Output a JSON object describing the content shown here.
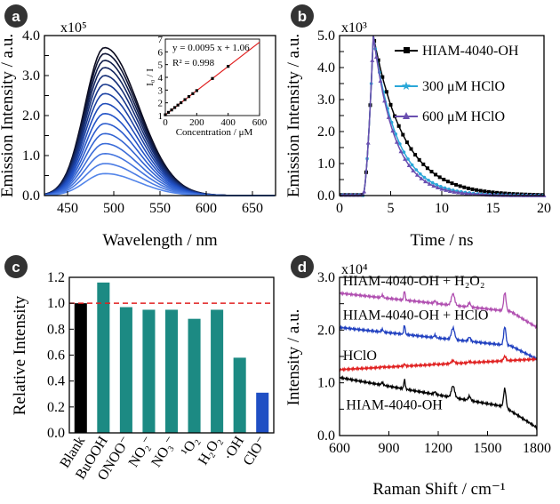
{
  "figure": {
    "panels": {
      "a": {
        "badge": "a",
        "multiplier": "x10⁵",
        "xlabel": "Wavelength / nm",
        "ylabel": "Emission Intensity / a.u."
      },
      "b": {
        "badge": "b",
        "multiplier": "x10³",
        "xlabel": "Time / ns",
        "ylabel": "Emission Intensity / a.u."
      },
      "c": {
        "badge": "c",
        "ylabel": "Relative Intensity"
      },
      "d": {
        "badge": "d",
        "multiplier": "x10⁴",
        "xlabel": "Raman Shift / cm⁻¹",
        "ylabel": "Intensity / a.u."
      }
    },
    "colors": {
      "dark_navy": "#0b0b1e",
      "mid_blue": "#1f4fc4",
      "light_blue": "#5b8def",
      "cyan": "#2aa7d8",
      "purple": "#6a4fb0",
      "teal": "#1c8a83",
      "red": "#e02020",
      "magenta": "#b04fb0",
      "blue_line": "#2040c0",
      "black": "#000000"
    }
  },
  "chart_data": [
    {
      "panel": "a",
      "type": "line",
      "xlabel": "Wavelength / nm",
      "ylabel": "Emission Intensity / a.u.",
      "y_multiplier": "x10⁵",
      "xlim": [
        425,
        675
      ],
      "ylim": [
        0,
        4.0
      ],
      "xticks": [
        450,
        500,
        550,
        600,
        650
      ],
      "yticks": [
        0.0,
        0.5,
        1.0,
        1.5,
        2.0,
        2.5,
        3.0,
        3.5,
        4.0
      ],
      "ytick_labels": [
        "0.0",
        "",
        "1.0",
        "",
        "2.0",
        "",
        "3.0",
        "",
        "4.0"
      ],
      "peak_wavelength": 490,
      "series_peaks": [
        3.7,
        3.55,
        3.38,
        3.2,
        3.0,
        2.78,
        2.55,
        2.3,
        2.05,
        1.8,
        1.55,
        1.3,
        1.05,
        0.8,
        0.55
      ],
      "gradient": "black to blue with increasing concentration",
      "inset": {
        "type": "scatter",
        "xlabel": "Concentration / μM",
        "ylabel": "I₀ / I",
        "xlim": [
          0,
          600
        ],
        "ylim": [
          1,
          7
        ],
        "xticks": [
          0,
          200,
          400,
          600
        ],
        "yticks": [
          1,
          2,
          3,
          4,
          5,
          6,
          7
        ],
        "equation": "y = 0.0095 x + 1.06",
        "r_squared": "R² = 0.998",
        "points": [
          [
            0,
            1.06
          ],
          [
            20,
            1.25
          ],
          [
            40,
            1.44
          ],
          [
            60,
            1.63
          ],
          [
            80,
            1.82
          ],
          [
            100,
            2.01
          ],
          [
            125,
            2.25
          ],
          [
            150,
            2.49
          ],
          [
            175,
            2.72
          ],
          [
            200,
            2.96
          ],
          [
            300,
            3.91
          ],
          [
            400,
            4.86
          ]
        ],
        "fit": {
          "slope": 0.0095,
          "intercept": 1.06
        }
      }
    },
    {
      "panel": "b",
      "type": "line",
      "xlabel": "Time / ns",
      "ylabel": "Emission Intensity / a.u.",
      "y_multiplier": "x10³",
      "xlim": [
        0,
        20
      ],
      "ylim": [
        0,
        5.0
      ],
      "xticks": [
        0,
        5,
        10,
        15,
        20
      ],
      "yticks": [
        0.0,
        0.5,
        1.0,
        1.5,
        2.0,
        2.5,
        3.0,
        3.5,
        4.0,
        4.5,
        5.0
      ],
      "ytick_labels": [
        "0.0",
        "",
        "1.0",
        "",
        "2.0",
        "",
        "3.0",
        "",
        "4.0",
        "",
        "5.0"
      ],
      "legend_position": "right",
      "series": [
        {
          "name": "HIAM-4040-OH",
          "color": "#000000",
          "marker": "square",
          "peak_time": 3.3,
          "peak": 5.0,
          "tau": 3.0
        },
        {
          "name": "300 μM HClO",
          "color": "#2aa7d8",
          "marker": "star",
          "peak_time": 3.3,
          "peak": 5.0,
          "tau": 2.3
        },
        {
          "name": "600 μM HClO",
          "color": "#6a4fb0",
          "marker": "triangle",
          "peak_time": 3.3,
          "peak": 5.0,
          "tau": 2.1
        }
      ]
    },
    {
      "panel": "c",
      "type": "bar",
      "ylabel": "Relative Intensity",
      "ylim": [
        0,
        1.2
      ],
      "yticks": [
        0.0,
        0.2,
        0.4,
        0.6,
        0.8,
        1.0,
        1.2
      ],
      "categories": [
        "Blank",
        "BuOOH",
        "ONOO⁻",
        "NO₂⁻",
        "NO₃⁻",
        "¹O₂",
        "H₂O₂",
        "·OH",
        "ClO⁻"
      ],
      "values": [
        1.0,
        1.16,
        0.97,
        0.95,
        0.95,
        0.88,
        0.95,
        0.58,
        0.31
      ],
      "bar_colors": [
        "#000000",
        "#1c8a83",
        "#1c8a83",
        "#1c8a83",
        "#1c8a83",
        "#1c8a83",
        "#1c8a83",
        "#1c8a83",
        "#1f4fc4"
      ],
      "reference_line": {
        "y": 1.0,
        "style": "dashed",
        "color": "#e02020"
      }
    },
    {
      "panel": "d",
      "type": "line",
      "xlabel": "Raman Shift / cm⁻¹",
      "ylabel": "Intensity / a.u.",
      "y_multiplier": "x10⁴",
      "xlim": [
        600,
        1800
      ],
      "ylim": [
        0,
        3.0
      ],
      "xticks": [
        600,
        900,
        1200,
        1500,
        1800
      ],
      "yticks": [
        0.0,
        0.5,
        1.0,
        1.5,
        2.0,
        2.5,
        3.0
      ],
      "ytick_labels": [
        "0.0",
        "",
        "1.0",
        "",
        "2.0",
        "",
        "3.0"
      ],
      "series": [
        {
          "name": "HIAM-4040-OH + H₂O₂",
          "color": "#b04fb0",
          "start": 2.7,
          "end": 2.3
        },
        {
          "name": "HIAM-4040-OH + HClO",
          "color": "#2040c0",
          "start": 2.05,
          "end": 1.65
        },
        {
          "name": "HClO",
          "color": "#e02020",
          "start": 1.25,
          "end": 1.45
        },
        {
          "name": "HIAM-4040-OH",
          "color": "#000000",
          "start": 1.1,
          "end": 0.15
        }
      ]
    }
  ]
}
